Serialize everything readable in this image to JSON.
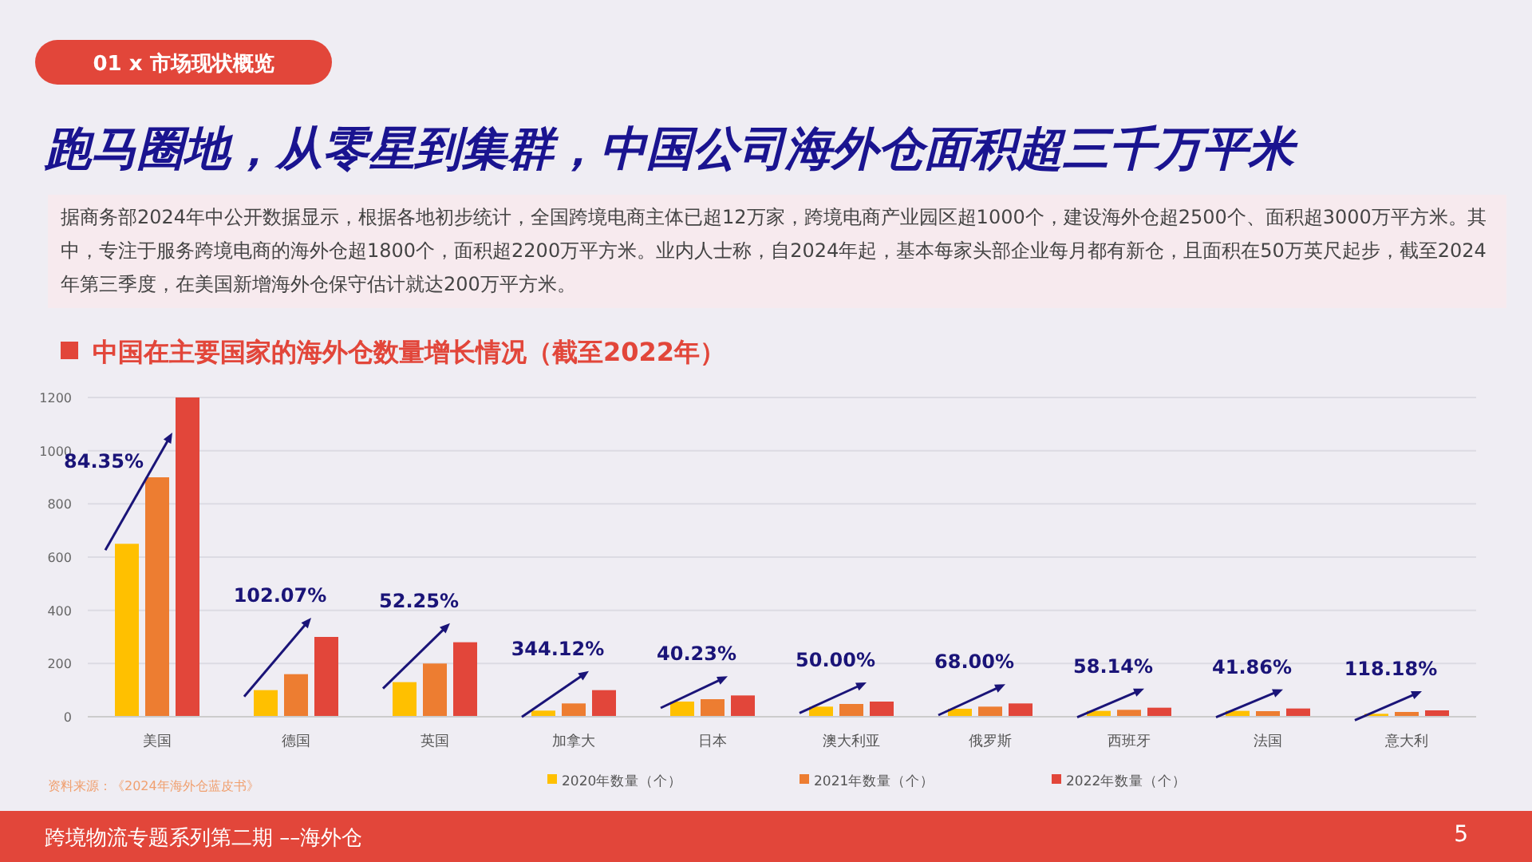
{
  "chart_data": {
    "type": "bar",
    "title": "中国在主要国家的海外仓数量增长情况（截至2022年）",
    "categories": [
      "美国",
      "德国",
      "英国",
      "加拿大",
      "日本",
      "澳大利亚",
      "俄罗斯",
      "西班牙",
      "法国",
      "意大利"
    ],
    "series": [
      {
        "name": "2020年数量（个）",
        "color": "#ffc000",
        "values": [
          650,
          100,
          130,
          23,
          57,
          38,
          30,
          22,
          22,
          11
        ]
      },
      {
        "name": "2021年数量（个）",
        "color": "#ed7d31",
        "values": [
          900,
          160,
          200,
          50,
          66,
          48,
          38,
          26,
          21,
          18
        ]
      },
      {
        "name": "2022年数量（个）",
        "color": "#e2463a",
        "values": [
          1200,
          300,
          280,
          100,
          80,
          57,
          50,
          34,
          31,
          24
        ]
      }
    ],
    "ylim": [
      0,
      1200
    ],
    "yticks": [
      0,
      200,
      400,
      600,
      800,
      1000,
      1200
    ],
    "grid": "y",
    "legend": "bottom",
    "annotations": [
      "01 x 市场现状概览",
      "跑马圈地，从零星到集群，中国公司海外仓面积超三千万平米",
      "据商务部2024年中公开数据显示，根据各地初步统计，全国跨境电商主体已超12万家，跨境电商产业园区超1000个，建设海外仓超2500个、面积超3000万平方米。其中，专注于服务跨境电商的海外仓超1800个，面积超2200万平方米。业内人士称，自2024年起，基本每家头部企业每月都有新仓，且面积在50万英尺起步，截至2024年第三季度，在美国新增海外仓保守估计就达200万平方米。",
      "资料来源：《2024年海外仓蓝皮书》",
      "跨境物流专题系列第二期 ––海外仓",
      "5",
      "84.35%",
      "102.07%",
      "52.25%",
      "344.12%",
      "40.23%",
      "50.00%",
      "68.00%",
      "58.14%",
      "41.86%",
      "118.18%"
    ]
  }
}
